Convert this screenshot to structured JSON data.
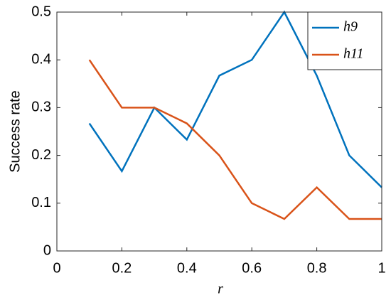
{
  "chart_data": {
    "type": "line",
    "x_label": "r",
    "y_label": "Success rate",
    "x": [
      0.1,
      0.2,
      0.3,
      0.4,
      0.5,
      0.6,
      0.7,
      0.8,
      0.9,
      1.0
    ],
    "series": [
      {
        "name": "h9",
        "color": "#0072bd",
        "values": [
          0.267,
          0.167,
          0.3,
          0.233,
          0.367,
          0.4,
          0.5,
          0.367,
          0.2,
          0.133
        ]
      },
      {
        "name": "h11",
        "color": "#d95319",
        "values": [
          0.4,
          0.3,
          0.3,
          0.267,
          0.2,
          0.1,
          0.067,
          0.133,
          0.067,
          0.067
        ]
      }
    ],
    "xlim": [
      0,
      1
    ],
    "xticks": [
      0,
      0.2,
      0.4,
      0.6,
      0.8,
      1
    ],
    "ylim": [
      0,
      0.5
    ],
    "yticks": [
      0,
      0.1,
      0.2,
      0.3,
      0.4,
      0.5
    ],
    "legend": "top-right"
  }
}
